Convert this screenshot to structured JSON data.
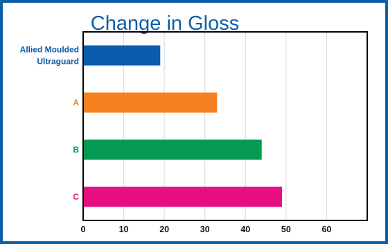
{
  "chart_data": {
    "type": "bar",
    "orientation": "horizontal",
    "title": "Change in Gloss",
    "xlabel": "",
    "ylabel": "",
    "categories": [
      [
        "Allied Moulded",
        "Ultraguard"
      ],
      [
        "A"
      ],
      [
        "B"
      ],
      [
        "C"
      ]
    ],
    "values": [
      19,
      33,
      44,
      49
    ],
    "colors": [
      "#0a5bab",
      "#f4801f",
      "#059a52",
      "#e60f82"
    ],
    "xlim": [
      0,
      70
    ],
    "xticks": [
      0,
      10,
      20,
      30,
      40,
      50,
      60
    ],
    "grid": true
  }
}
